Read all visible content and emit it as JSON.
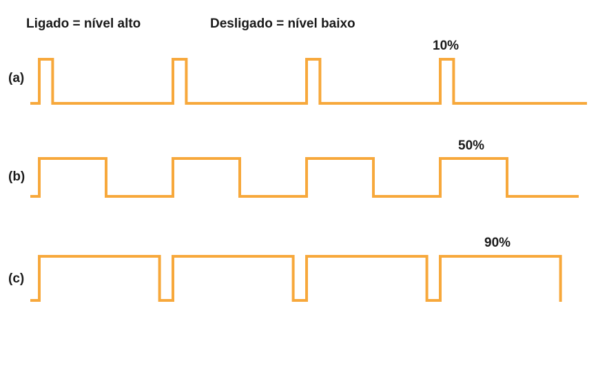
{
  "legend": {
    "on_label": "Ligado = nível alto",
    "off_label": "Desligado = nível baixo"
  },
  "colors": {
    "signal": "#f7a83b",
    "text": "#1a1a1a"
  },
  "rows": [
    {
      "label": "(a)",
      "duty_label": "10%",
      "duty_cycle": 0.1,
      "periods": 4
    },
    {
      "label": "(b)",
      "duty_label": "50%",
      "duty_cycle": 0.5,
      "periods": 4
    },
    {
      "label": "(c)",
      "duty_label": "90%",
      "duty_cycle": 0.9,
      "periods": 4
    }
  ]
}
